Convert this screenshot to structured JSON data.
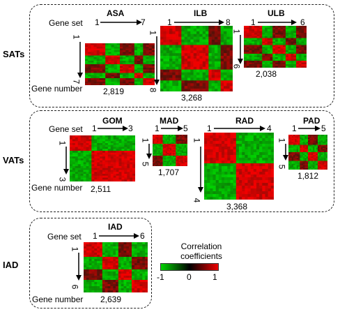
{
  "groups": {
    "sats": "SATs",
    "vats": "VATs",
    "iad": "IAD"
  },
  "axis_labels": {
    "gene_set": "Gene set",
    "gene_number": "Gene number"
  },
  "heatmaps": {
    "asa": {
      "title": "ASA",
      "start": "1",
      "end": "7",
      "count": "2,819"
    },
    "ilb": {
      "title": "ILB",
      "start": "1",
      "end": "8",
      "count": "3,268"
    },
    "ulb": {
      "title": "ULB",
      "start": "1",
      "end": "6",
      "count": "2,038"
    },
    "gom": {
      "title": "GOM",
      "start": "1",
      "end": "3",
      "count": "2,511"
    },
    "mad": {
      "title": "MAD",
      "start": "1",
      "end": "5",
      "count": "1,707"
    },
    "rad": {
      "title": "RAD",
      "start": "1",
      "end": "4",
      "count": "3,368"
    },
    "pad": {
      "title": "PAD",
      "start": "1",
      "end": "5",
      "count": "1,812"
    },
    "iad": {
      "title": "IAD",
      "start": "1",
      "end": "6",
      "count": "2,639"
    }
  },
  "legend": {
    "title_line1": "Correlation",
    "title_line2": "coefficients",
    "min": "-1",
    "mid": "0",
    "max": "1",
    "colors": {
      "low": "#00d400",
      "mid": "#000000",
      "high": "#ee0000"
    }
  }
}
